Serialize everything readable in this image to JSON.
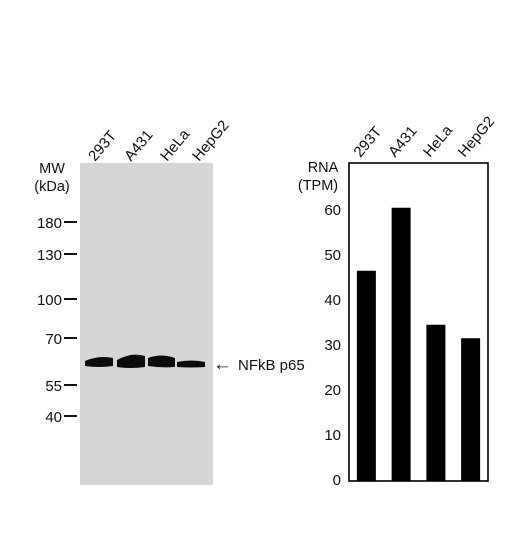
{
  "blot": {
    "lanes": [
      "293T",
      "A431",
      "HeLa",
      "HepG2"
    ],
    "mw_label_line1": "MW",
    "mw_label_line2": "(kDa)",
    "mw_markers": [
      "180",
      "130",
      "100",
      "70",
      "55",
      "40"
    ],
    "band_label": "NFkB p65",
    "band_arrow": "←",
    "membrane_color": "#d6d6d6",
    "band_color": "#0b0b0b"
  },
  "chart_data": {
    "type": "bar",
    "categories": [
      "293T",
      "A431",
      "HeLa",
      "HepG2"
    ],
    "values": [
      46.5,
      60.5,
      34.5,
      31.5
    ],
    "ylabel_line1": "RNA",
    "ylabel_line2": "(TPM)",
    "yticks": [
      "0",
      "10",
      "20",
      "30",
      "40",
      "50",
      "60"
    ],
    "ylim": [
      0,
      70
    ],
    "bar_color": "#000000",
    "grid": false
  }
}
